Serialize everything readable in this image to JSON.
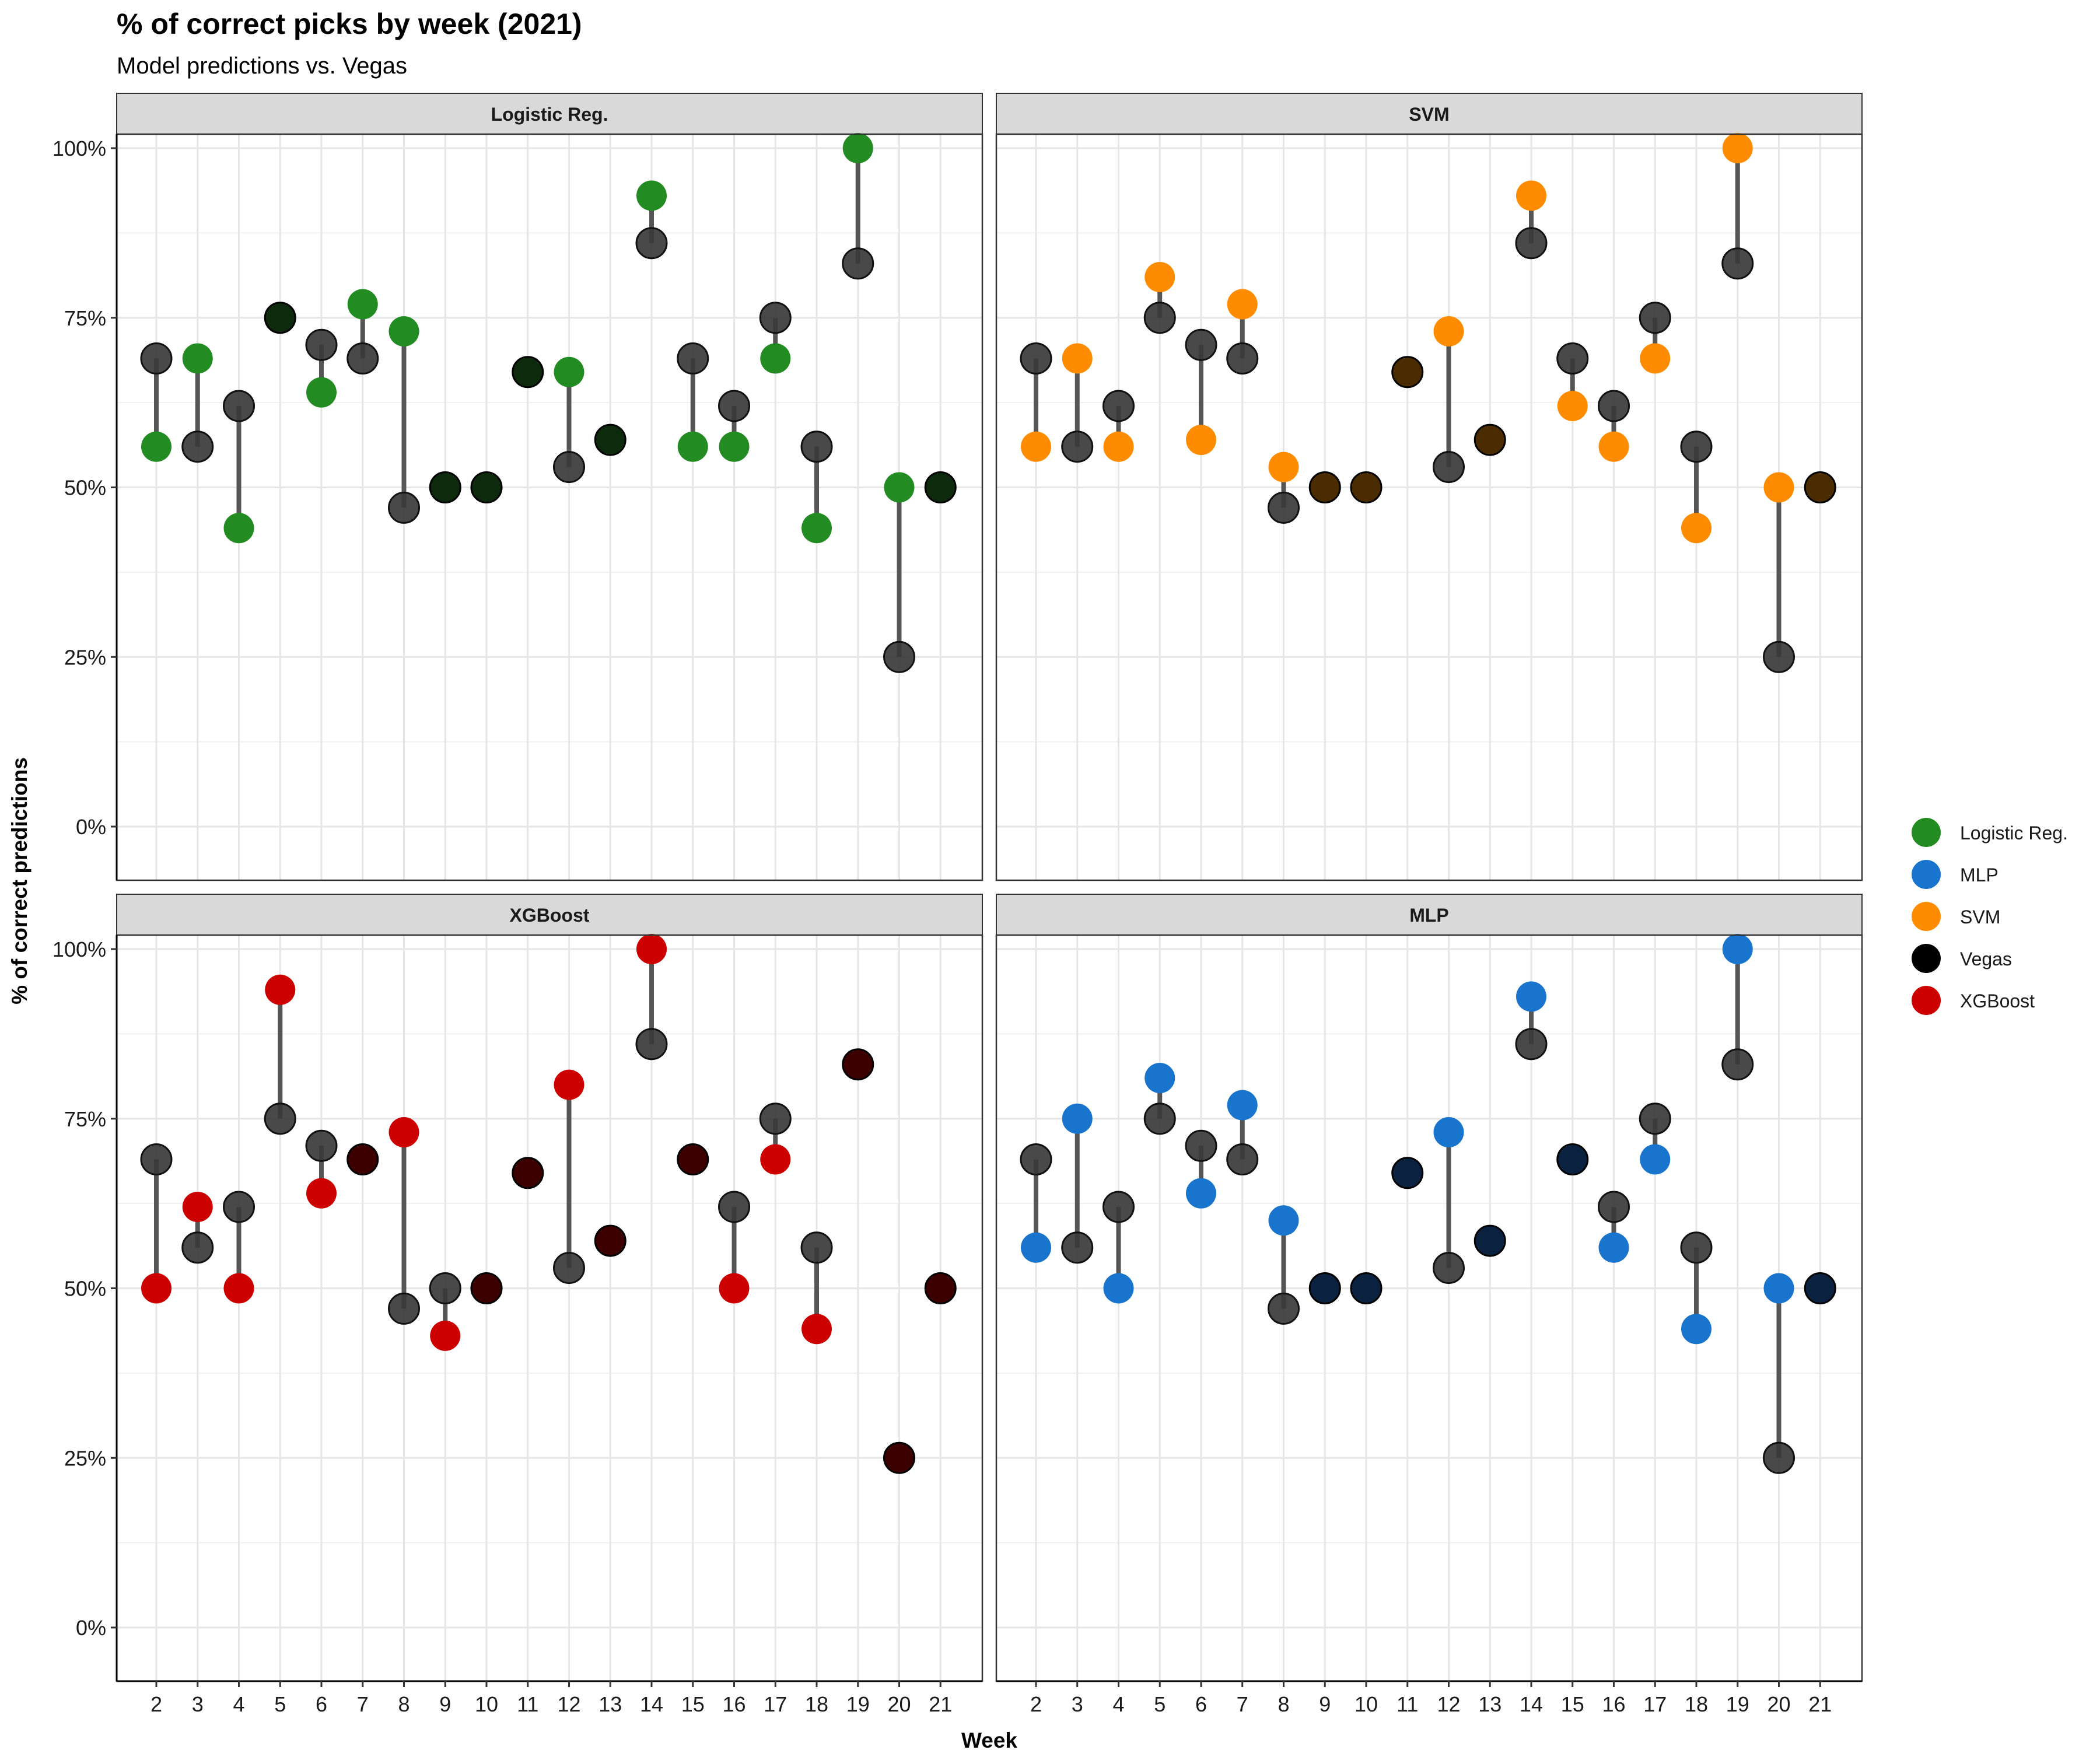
{
  "chart_data": {
    "type": "scatter",
    "title": "% of correct picks by week (2021)",
    "subtitle": "Model predictions vs. Vegas",
    "xlabel": "Week",
    "ylabel": "% of correct predictions",
    "x": [
      2,
      3,
      4,
      5,
      6,
      7,
      8,
      9,
      10,
      11,
      12,
      13,
      14,
      15,
      16,
      17,
      18,
      19,
      20,
      21
    ],
    "x_ticks": [
      "2",
      "3",
      "4",
      "5",
      "6",
      "7",
      "8",
      "9",
      "10",
      "11",
      "12",
      "13",
      "14",
      "15",
      "16",
      "17",
      "18",
      "19",
      "20",
      "21"
    ],
    "ylim": [
      0,
      1
    ],
    "y_ticks": [
      {
        "value": 0,
        "label": "0%"
      },
      {
        "value": 0.25,
        "label": "25%"
      },
      {
        "value": 0.5,
        "label": "50%"
      },
      {
        "value": 0.75,
        "label": "75%"
      },
      {
        "value": 1,
        "label": "100%"
      }
    ],
    "grid": true,
    "legend_position": "right",
    "legend": [
      {
        "name": "Logistic Reg.",
        "color": "#228B22"
      },
      {
        "name": "MLP",
        "color": "#1874CD"
      },
      {
        "name": "SVM",
        "color": "#FF8C00"
      },
      {
        "name": "Vegas",
        "color": "#000000"
      },
      {
        "name": "XGBoost",
        "color": "#CD0000"
      }
    ],
    "vegas": {
      "name": "Vegas",
      "color": "#3a3a3a",
      "values": [
        0.69,
        0.56,
        0.62,
        0.75,
        0.71,
        0.69,
        0.47,
        0.5,
        0.5,
        0.67,
        0.53,
        0.57,
        0.86,
        0.69,
        0.62,
        0.75,
        0.56,
        0.83,
        0.25,
        0.5
      ]
    },
    "panels": [
      {
        "title": "Logistic Reg.",
        "color": "#228B22",
        "tie_color": "#0d2a0d",
        "values": [
          0.56,
          0.69,
          0.44,
          0.75,
          0.64,
          0.77,
          0.73,
          0.5,
          0.5,
          0.67,
          0.67,
          0.57,
          0.93,
          0.56,
          0.56,
          0.69,
          0.44,
          1.0,
          0.5,
          0.5
        ]
      },
      {
        "title": "SVM",
        "color": "#FF8C00",
        "tie_color": "#4a2c00",
        "values": [
          0.56,
          0.69,
          0.56,
          0.81,
          0.57,
          0.77,
          0.53,
          0.5,
          0.5,
          0.67,
          0.73,
          0.57,
          0.93,
          0.62,
          0.56,
          0.69,
          0.44,
          1.0,
          0.5,
          0.5
        ]
      },
      {
        "title": "XGBoost",
        "color": "#CD0000",
        "tie_color": "#3d0000",
        "values": [
          0.5,
          0.62,
          0.5,
          0.94,
          0.64,
          0.69,
          0.73,
          0.43,
          0.5,
          0.67,
          0.8,
          0.57,
          1.0,
          0.69,
          0.5,
          0.69,
          0.44,
          0.83,
          0.25,
          0.5
        ]
      },
      {
        "title": "MLP",
        "color": "#1874CD",
        "tie_color": "#0a2240",
        "values": [
          0.56,
          0.75,
          0.5,
          0.81,
          0.64,
          0.77,
          0.6,
          0.5,
          0.5,
          0.67,
          0.73,
          0.57,
          0.93,
          0.69,
          0.56,
          0.69,
          0.44,
          1.0,
          0.5,
          0.5
        ]
      }
    ]
  }
}
